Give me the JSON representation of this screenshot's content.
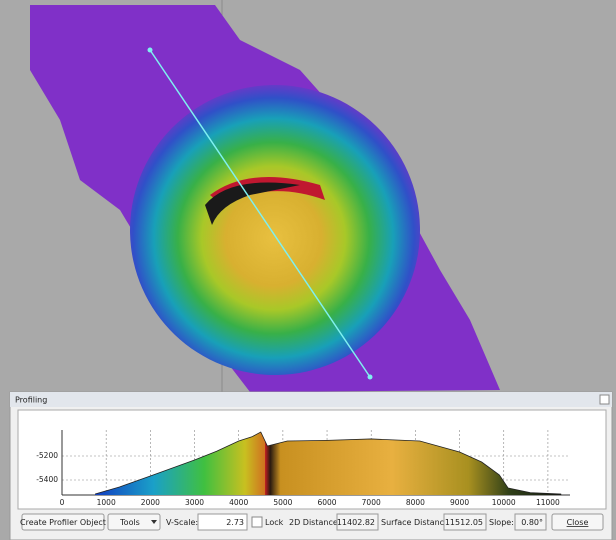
{
  "window": {
    "title": "Profiling"
  },
  "profile_chart": {
    "type": "area",
    "x": [
      750,
      1300,
      2000,
      2500,
      3000,
      3500,
      4000,
      4300,
      4500,
      4650,
      5100,
      6000,
      7000,
      8100,
      9000,
      9500,
      9900,
      10100,
      10600,
      11300
    ],
    "values": [
      -5517,
      -5458,
      -5367,
      -5300,
      -5233,
      -5160,
      -5075,
      -5040,
      -5000,
      -5117,
      -5075,
      -5070,
      -5058,
      -5075,
      -5167,
      -5250,
      -5358,
      -5467,
      -5505,
      -5517
    ],
    "xlim": [
      0,
      11500
    ],
    "ylim": [
      -5525,
      -5000
    ],
    "xticks": [
      0,
      1000,
      2000,
      3000,
      4000,
      5000,
      6000,
      7000,
      8000,
      9000,
      10000,
      11000
    ],
    "yticks": [
      -5400,
      -5200
    ],
    "grid": true
  },
  "toolbar": {
    "create_button": "Create Profiler Object",
    "tools_menu": "Tools",
    "vscale_label": "V-Scale:",
    "vscale_value": "2.73",
    "lock_label": "Lock",
    "distance_2d_label": "2D Distance:",
    "distance_2d_value": "11402.82",
    "surface_distance_label": "Surface Distance:",
    "surface_distance_value": "11512.05",
    "slope_label": "Slope:",
    "slope_value": "0.80°",
    "close_button": "Close"
  }
}
